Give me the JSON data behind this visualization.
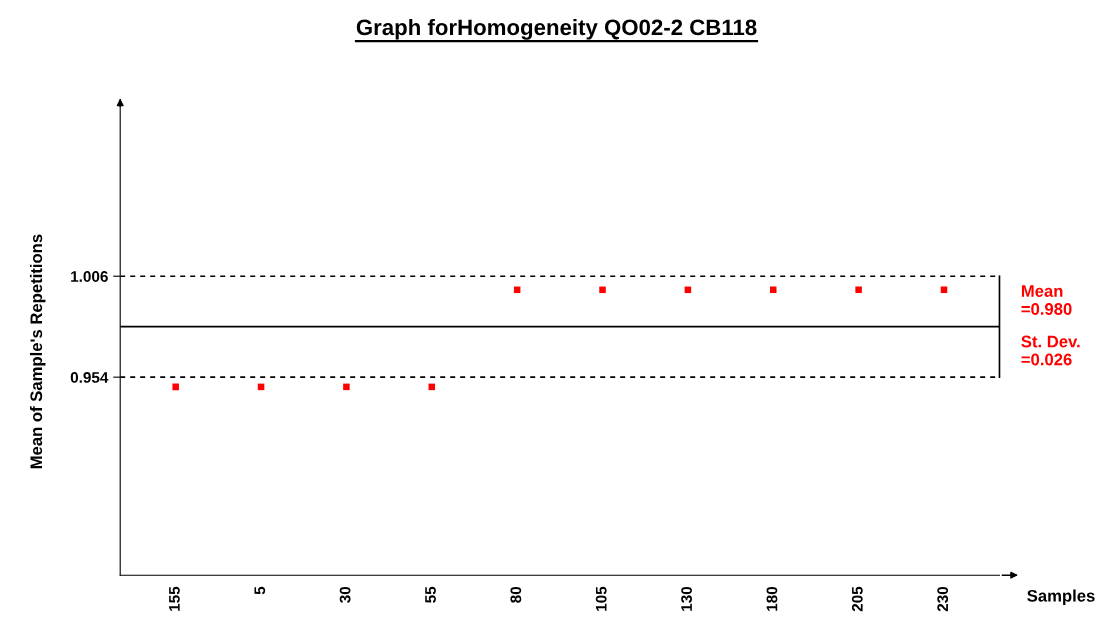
{
  "chart_data": {
    "type": "scatter",
    "title": "Graph forHomogeneity QO02-2 CB118",
    "xlabel": "Samples",
    "ylabel": "Mean of Sample's Repetitions",
    "categories": [
      "155",
      "5",
      "30",
      "55",
      "80",
      "105",
      "130",
      "180",
      "205",
      "230"
    ],
    "series": [
      {
        "color": "#ff0000",
        "values": [
          0.949,
          0.949,
          0.949,
          0.949,
          0.999,
          0.999,
          0.999,
          0.999,
          0.999,
          0.999
        ]
      }
    ],
    "marker": "square",
    "ylim": [
      0.852,
      1.097
    ],
    "yticks": [
      0.954,
      1.006
    ],
    "ref_lines": [
      {
        "axis": "y",
        "value": 1.006,
        "line_style": "dashed",
        "color": "#000000"
      },
      {
        "axis": "y",
        "value": 0.98,
        "line_style": "solid",
        "color": "#000000"
      },
      {
        "axis": "y",
        "value": 0.954,
        "line_style": "dashed",
        "color": "#000000"
      }
    ],
    "annotations": [
      "Mean\n=0.980",
      "St. Dev.\n=0.026"
    ],
    "grid": false
  }
}
